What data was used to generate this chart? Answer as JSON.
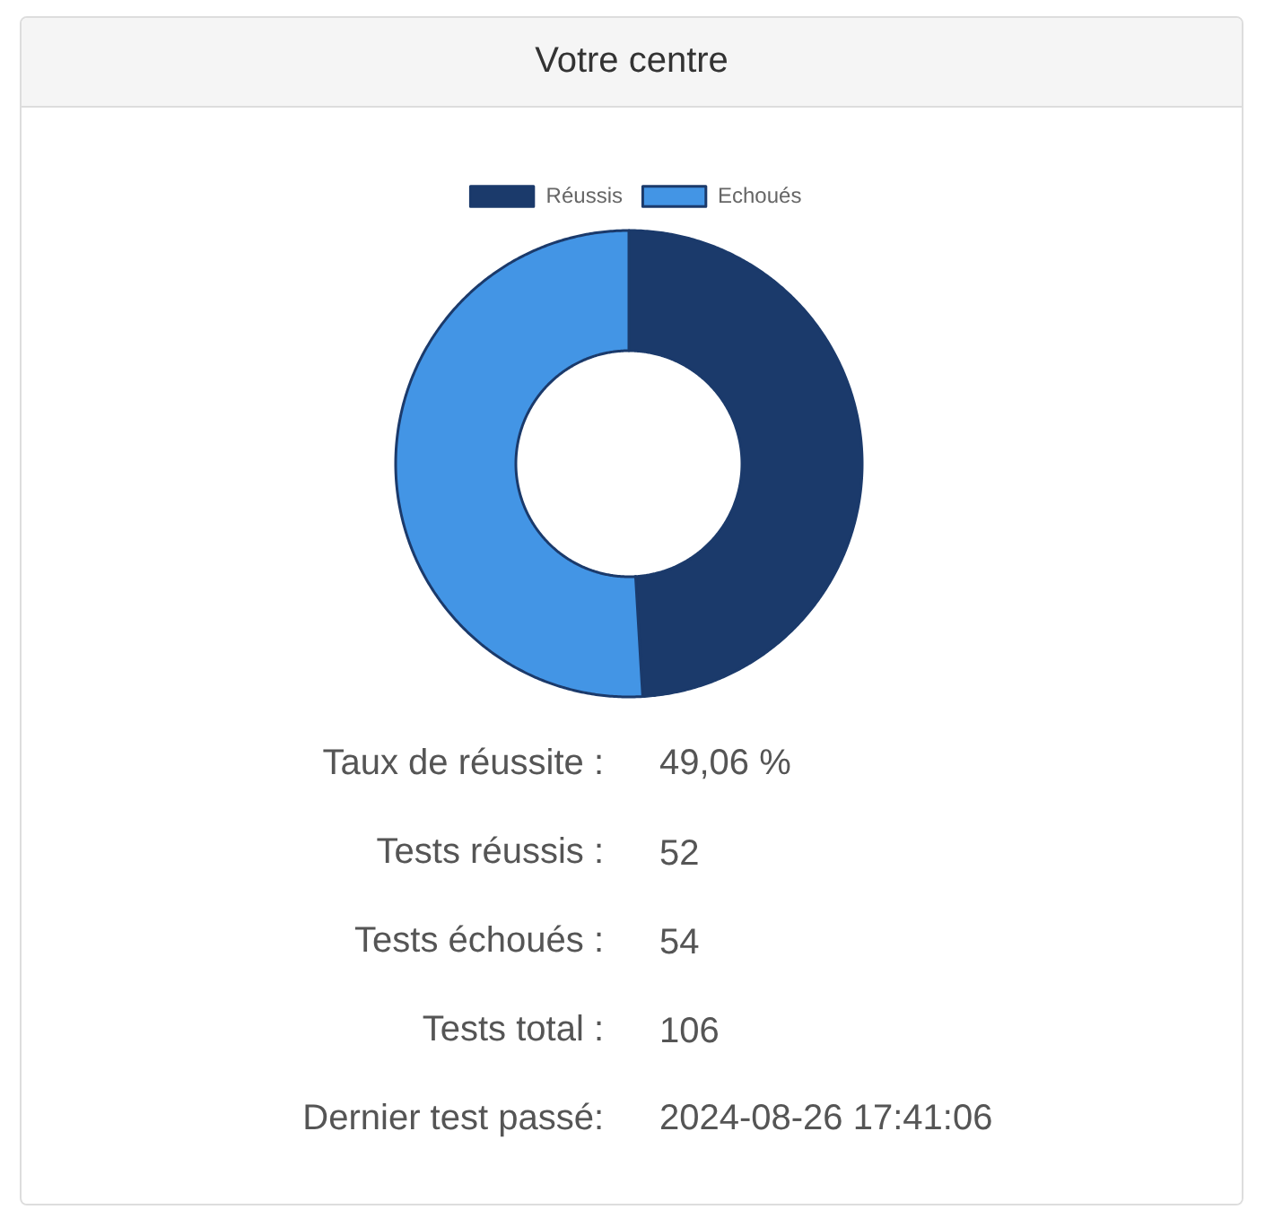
{
  "chart_data": {
    "type": "donut",
    "title": "Votre centre",
    "categories": [
      "Réussis",
      "Echoués"
    ],
    "values": [
      49.06,
      50.94
    ],
    "colors": [
      "#1b3a6b",
      "#4395e5"
    ],
    "legend": "top",
    "annotations": [
      "Taux de réussite :",
      "49,06 %",
      "Tests réussis :",
      "52",
      "Tests échoués :",
      "54",
      "Tests total :",
      "106",
      "Dernier test passé:",
      "2024-08-26 17:41:06"
    ]
  }
}
